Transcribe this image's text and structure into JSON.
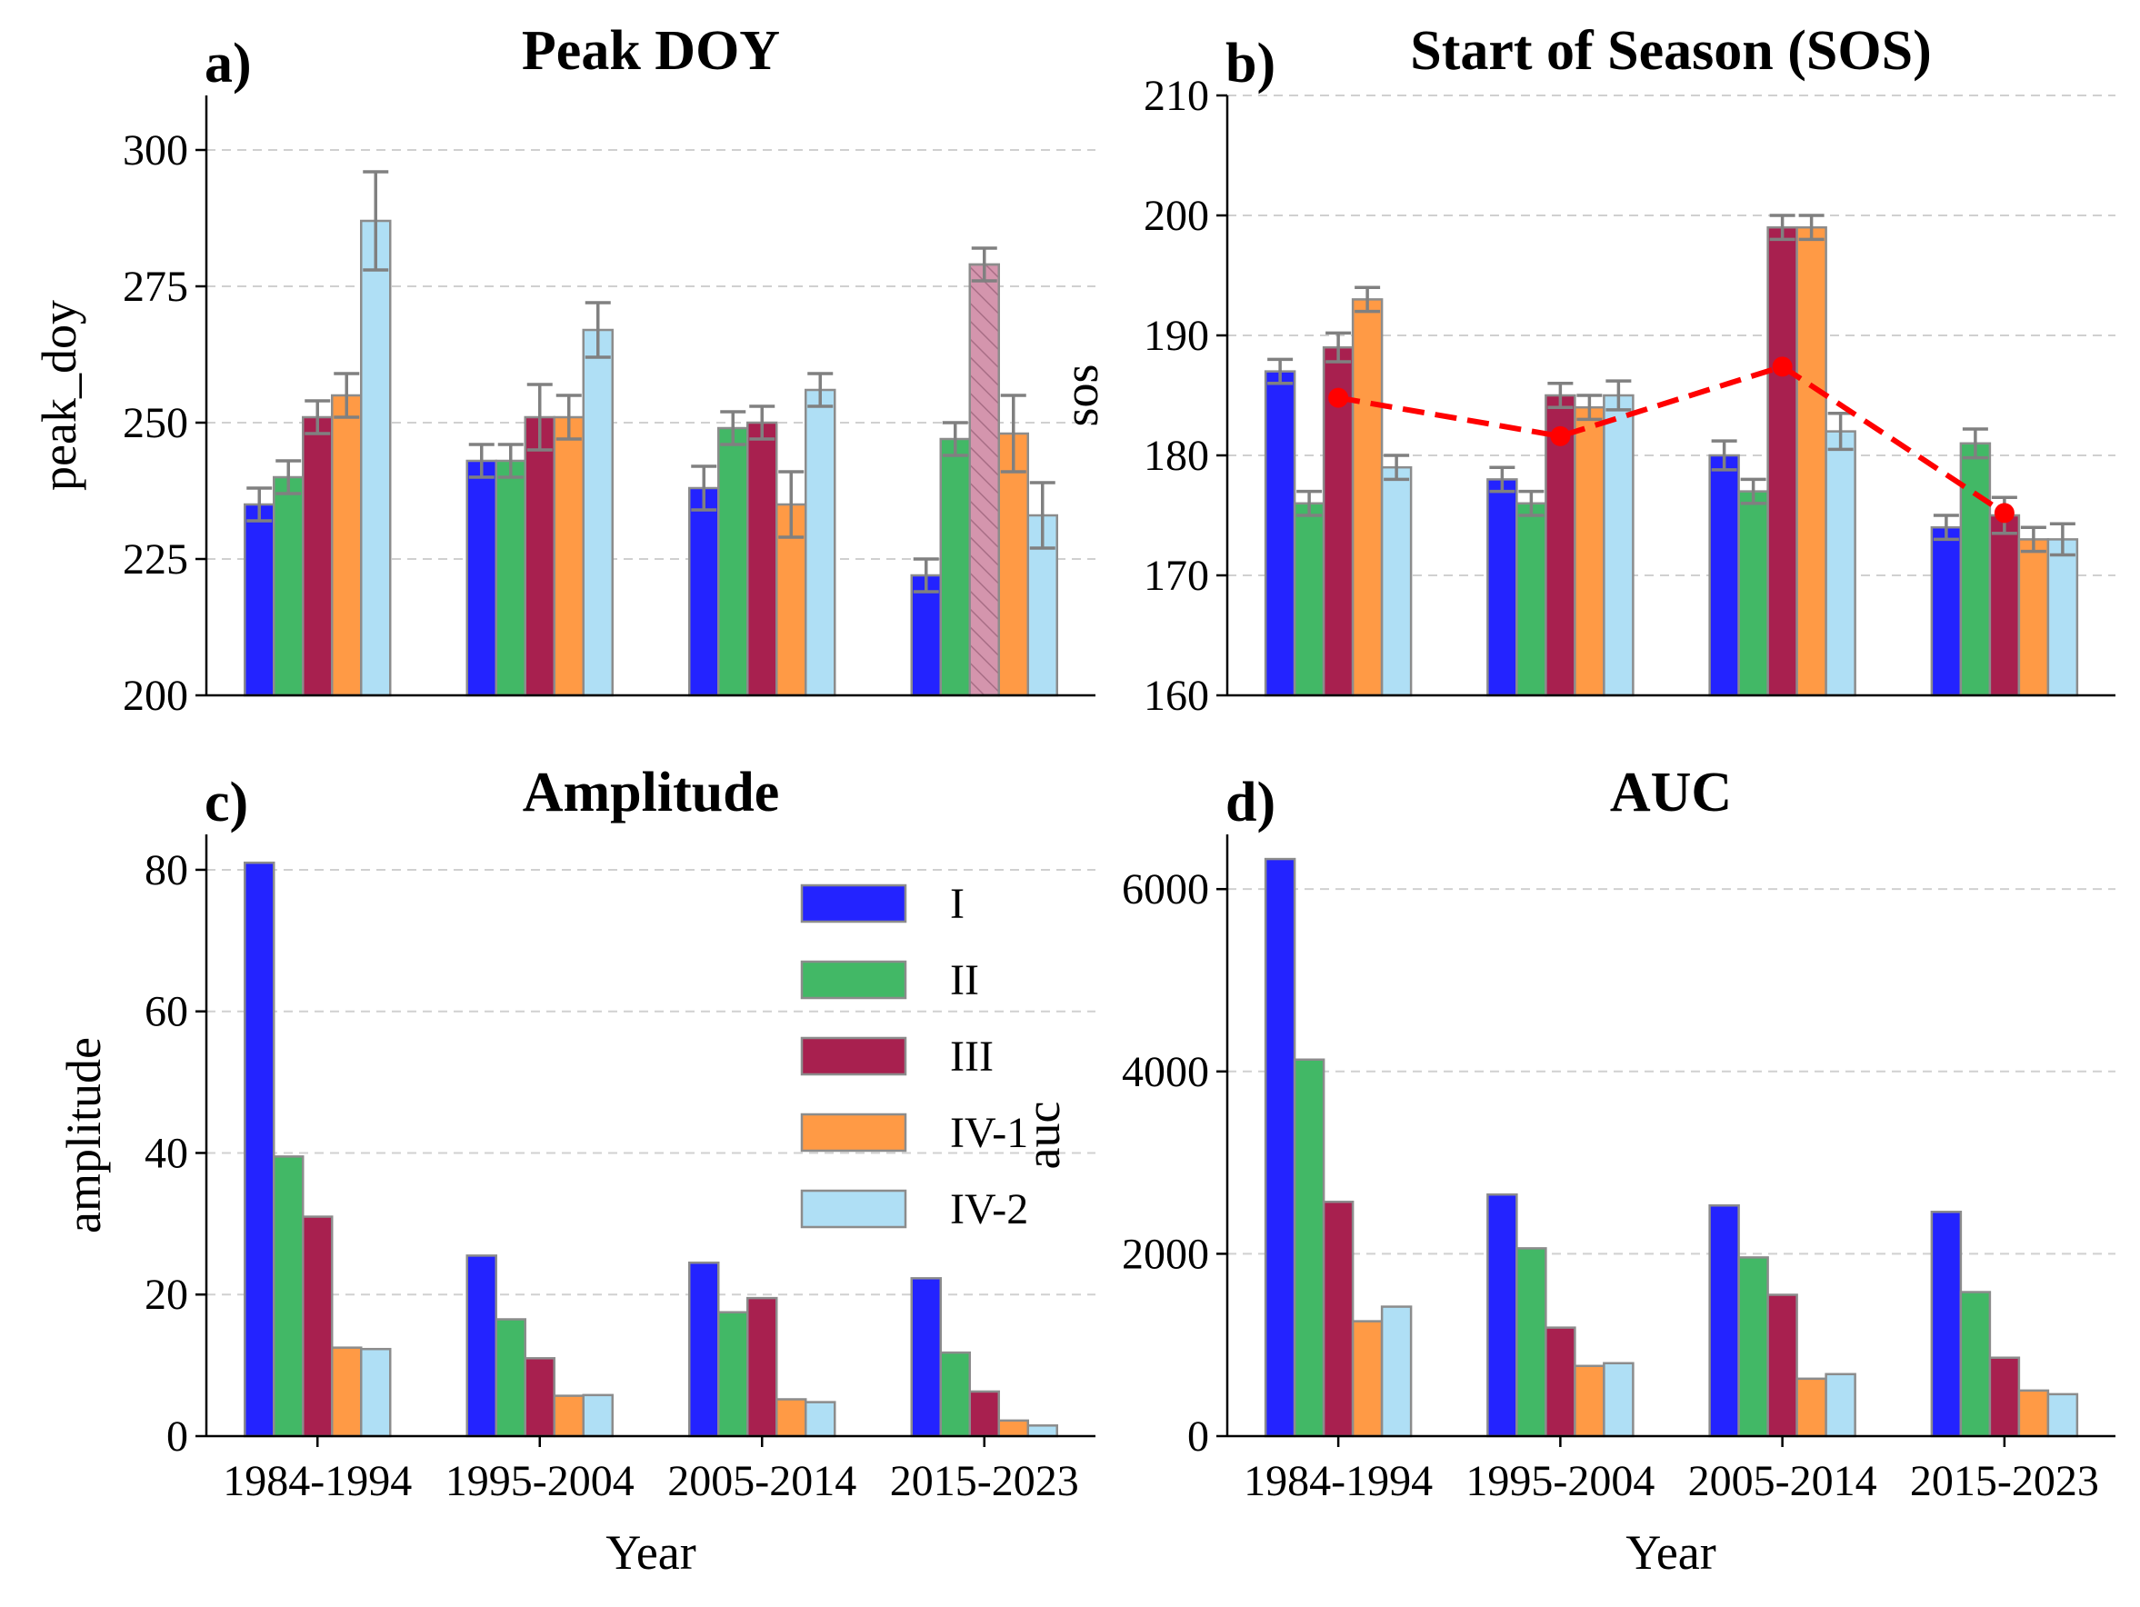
{
  "chart_data": [
    {
      "type": "bar",
      "panel_label": "a)",
      "title": "Peak DOY",
      "xlabel": "",
      "ylabel": "peak_doy",
      "ylim": [
        200,
        310
      ],
      "yticks": [
        200,
        225,
        250,
        275,
        300
      ],
      "grid": "horizontal dashed",
      "categories": [
        "1984-1994",
        "1995-2004",
        "2005-2014",
        "2015-2023"
      ],
      "show_xtick_labels": false,
      "series": [
        {
          "name": "I",
          "values": [
            235,
            243,
            238,
            222
          ],
          "errors": [
            3,
            3,
            4,
            3
          ]
        },
        {
          "name": "II",
          "values": [
            240,
            243,
            249,
            247
          ],
          "errors": [
            3,
            3,
            3,
            3
          ]
        },
        {
          "name": "III",
          "values": [
            251,
            251,
            250,
            279
          ],
          "errors": [
            3,
            6,
            3,
            3
          ],
          "hatched": [
            false,
            false,
            false,
            true
          ]
        },
        {
          "name": "IV-1",
          "values": [
            255,
            251,
            235,
            248
          ],
          "errors": [
            4,
            4,
            6,
            7
          ]
        },
        {
          "name": "IV-2",
          "values": [
            287,
            267,
            256,
            233
          ],
          "errors": [
            9,
            5,
            3,
            6
          ]
        }
      ]
    },
    {
      "type": "bar",
      "panel_label": "b)",
      "title": "Start of Season (SOS)",
      "xlabel": "",
      "ylabel": "sos",
      "ylim": [
        160,
        210
      ],
      "yticks": [
        160,
        170,
        180,
        190,
        200,
        210
      ],
      "grid": "horizontal dashed",
      "categories": [
        "1984-1994",
        "1995-2004",
        "2005-2014",
        "2015-2023"
      ],
      "show_xtick_labels": false,
      "series": [
        {
          "name": "I",
          "values": [
            187,
            178,
            180,
            174
          ],
          "errors": [
            1,
            1,
            1.2,
            1
          ]
        },
        {
          "name": "II",
          "values": [
            176,
            176,
            177,
            181
          ],
          "errors": [
            1,
            1,
            1,
            1.2
          ]
        },
        {
          "name": "III",
          "values": [
            189,
            185,
            199,
            175
          ],
          "errors": [
            1.2,
            1,
            1,
            1.5
          ]
        },
        {
          "name": "IV-1",
          "values": [
            193,
            184,
            199,
            173
          ],
          "errors": [
            1,
            1,
            1,
            1
          ]
        },
        {
          "name": "IV-2",
          "values": [
            179,
            185,
            182,
            173
          ],
          "errors": [
            1,
            1.2,
            1.5,
            1.3
          ]
        }
      ],
      "overlay_line": {
        "values": [
          184.8,
          181.6,
          187.4,
          175.2
        ],
        "color": "#ff0000",
        "style": "dashed",
        "marker": "circle"
      }
    },
    {
      "type": "bar",
      "panel_label": "c)",
      "title": "Amplitude",
      "xlabel": "Year",
      "ylabel": "amplitude",
      "ylim": [
        0,
        85
      ],
      "yticks": [
        0,
        20,
        40,
        60,
        80
      ],
      "grid": "horizontal dashed",
      "legend": "top-right",
      "categories": [
        "1984-1994",
        "1995-2004",
        "2005-2014",
        "2015-2023"
      ],
      "show_xtick_labels": true,
      "series": [
        {
          "name": "I",
          "values": [
            81,
            25.5,
            24.5,
            22.3
          ]
        },
        {
          "name": "II",
          "values": [
            39.5,
            16.5,
            17.5,
            11.8
          ]
        },
        {
          "name": "III",
          "values": [
            31,
            11,
            19.5,
            6.3
          ]
        },
        {
          "name": "IV-1",
          "values": [
            12.5,
            5.7,
            5.2,
            2.2
          ]
        },
        {
          "name": "IV-2",
          "values": [
            12.3,
            5.8,
            4.8,
            1.5
          ]
        }
      ]
    },
    {
      "type": "bar",
      "panel_label": "d)",
      "title": "AUC",
      "xlabel": "Year",
      "ylabel": "auc",
      "ylim": [
        0,
        6600
      ],
      "yticks": [
        0,
        2000,
        4000,
        6000
      ],
      "grid": "horizontal dashed",
      "categories": [
        "1984-1994",
        "1995-2004",
        "2005-2014",
        "2015-2023"
      ],
      "show_xtick_labels": true,
      "series": [
        {
          "name": "I",
          "values": [
            6330,
            2650,
            2530,
            2460
          ]
        },
        {
          "name": "II",
          "values": [
            4130,
            2060,
            1960,
            1580
          ]
        },
        {
          "name": "III",
          "values": [
            2570,
            1190,
            1550,
            860
          ]
        },
        {
          "name": "IV-1",
          "values": [
            1260,
            770,
            630,
            500
          ]
        },
        {
          "name": "IV-2",
          "values": [
            1420,
            800,
            680,
            460
          ]
        }
      ]
    }
  ],
  "colors": {
    "I": "#2323ff",
    "II": "#42b866",
    "III": "#a8204f",
    "IV-1": "#ff9a45",
    "IV-2": "#afdff5",
    "hatched_bar": "#d495ad",
    "bar_edge": "#8c8c8c",
    "error_bar": "#808080",
    "grid": "#d0d0d0"
  }
}
